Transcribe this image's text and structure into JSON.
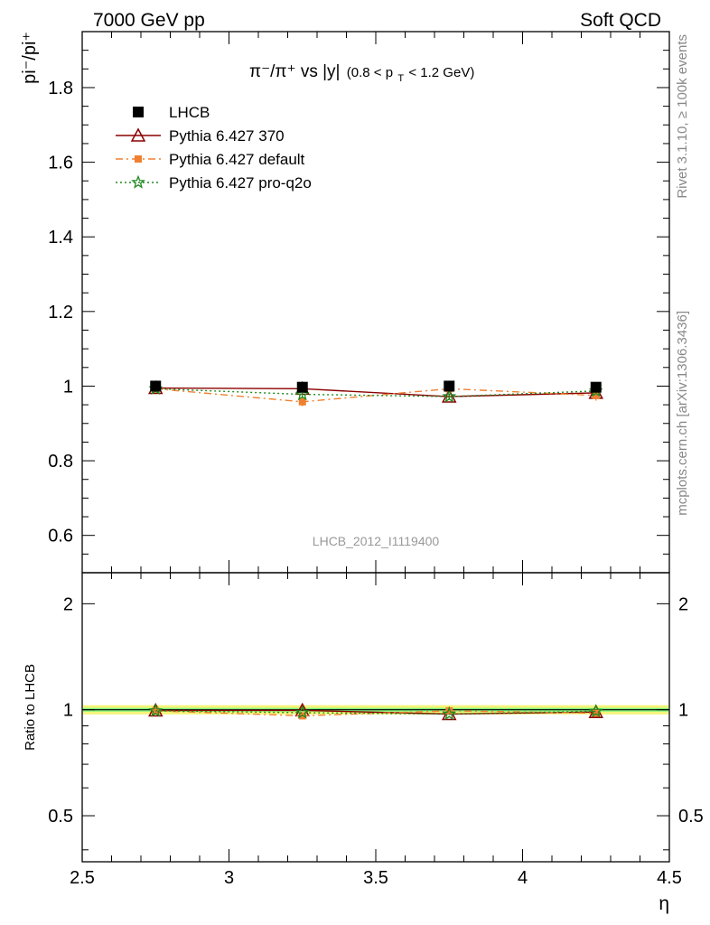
{
  "header": {
    "left": "7000 GeV pp",
    "right": "Soft QCD"
  },
  "side_labels": {
    "rivet": "Rivet 3.1.10, ≥ 100k events",
    "mcplots": "mcplots.cern.ch [arXiv:1306.3436]"
  },
  "chart_data": [
    {
      "type": "line",
      "panel": "main",
      "title": "π⁻/π⁺ vs |y|",
      "title_parts": {
        "main": "π⁻/π⁺ vs |y|",
        "range_prefix": "(0.8 < p",
        "range_sub": "T",
        "range_suffix": " < 1.2 GeV)"
      },
      "ylabel": "pi⁻/pi⁺",
      "xlabel": "η",
      "analysis_tag": "LHCB_2012_I1119400",
      "xlim": [
        2.5,
        4.5
      ],
      "ylim": [
        0.5,
        1.95
      ],
      "yticks": [
        0.6,
        0.8,
        1,
        1.2,
        1.4,
        1.6,
        1.8
      ],
      "ytick_labels": [
        "0.6",
        "0.8",
        "1",
        "1.2",
        "1.4",
        "1.6",
        "1.8"
      ],
      "legend_position": "top-left",
      "x": [
        2.75,
        3.25,
        3.75,
        4.25
      ],
      "series": [
        {
          "name": "LHCB",
          "style": "data",
          "color": "#000000",
          "marker": "square",
          "values": [
            1.0,
            0.997,
            1.0,
            0.997
          ],
          "errors": [
            0.006,
            0.006,
            0.008,
            0.008
          ]
        },
        {
          "name": "Pythia 6.427 370",
          "style": "solid",
          "color": "#8b0000",
          "marker": "triangle",
          "values": [
            0.995,
            0.993,
            0.972,
            0.982
          ],
          "errors": [
            0.008,
            0.008,
            0.008,
            0.008
          ]
        },
        {
          "name": "Pythia 6.427 default",
          "style": "dashdot",
          "color": "#f08030",
          "marker": "square-small",
          "values": [
            0.993,
            0.958,
            0.993,
            0.975
          ],
          "errors": [
            0.008,
            0.012,
            0.008,
            0.014
          ]
        },
        {
          "name": "Pythia 6.427 pro-q2o",
          "style": "dotted",
          "color": "#1e8a1e",
          "marker": "star",
          "values": [
            0.993,
            0.978,
            0.972,
            0.987
          ],
          "errors": [
            0.008,
            0.008,
            0.008,
            0.008
          ]
        }
      ]
    },
    {
      "type": "line",
      "panel": "ratio",
      "ylabel": "Ratio to LHCB",
      "xlabel": "η",
      "xlim": [
        2.5,
        4.5
      ],
      "ylim": [
        0.37,
        2.45
      ],
      "yscale": "log",
      "xticks": [
        2.5,
        3,
        3.5,
        4,
        4.5
      ],
      "xtick_labels": [
        "2.5",
        "3",
        "3.5",
        "4",
        "4.5"
      ],
      "yticks": [
        0.5,
        1,
        2
      ],
      "ytick_labels": [
        "0.5",
        "1",
        "2"
      ],
      "x": [
        2.75,
        3.25,
        3.75,
        4.25
      ],
      "band": {
        "yellow_halfwidth": 0.03,
        "green_halfwidth": 0.012
      },
      "series": [
        {
          "name": "Pythia 6.427 370",
          "color": "#8b0000",
          "values": [
            0.995,
            0.996,
            0.972,
            0.985
          ]
        },
        {
          "name": "Pythia 6.427 default",
          "color": "#f08030",
          "values": [
            0.993,
            0.961,
            0.993,
            0.978
          ]
        },
        {
          "name": "Pythia 6.427 pro-q2o",
          "color": "#1e8a1e",
          "values": [
            0.993,
            0.981,
            0.972,
            0.99
          ]
        }
      ]
    }
  ]
}
